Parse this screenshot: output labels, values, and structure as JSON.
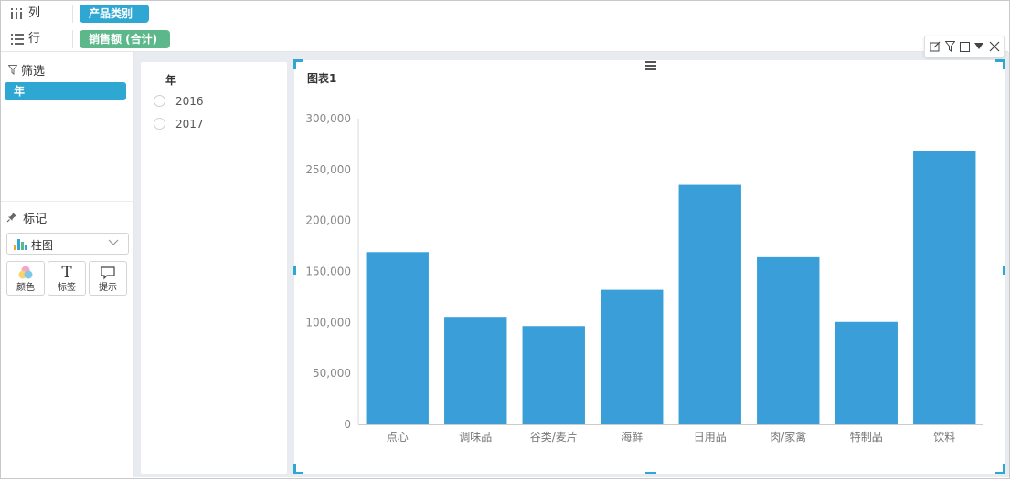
{
  "shelves": {
    "columns": {
      "label": "列",
      "icon": "columns-icon",
      "field": "产品类别"
    },
    "rows": {
      "label": "行",
      "icon": "rows-icon",
      "field": "销售额 (合计)"
    }
  },
  "left_panel": {
    "filter": {
      "title": "筛选",
      "icon": "filter-icon",
      "field": "年"
    },
    "marks": {
      "title": "标记",
      "icon": "pin-icon",
      "chart_type": "柱图",
      "buttons": [
        {
          "label": "颜色",
          "icon": "color-icon"
        },
        {
          "label": "标签",
          "icon": "text-icon"
        },
        {
          "label": "提示",
          "icon": "tooltip-icon"
        }
      ]
    }
  },
  "filter_widget": {
    "title": "年",
    "options": [
      "2016",
      "2017"
    ]
  },
  "chart_widget": {
    "title": "图表1",
    "toolbar": [
      "edit-icon",
      "filter-icon",
      "maximize-icon",
      "dropdown-icon",
      "close-icon"
    ]
  },
  "colors": {
    "accent": "#2ea8d3",
    "bar": "#3a9fd8",
    "measure_pill": "#5cb88a"
  },
  "chart_data": {
    "type": "bar",
    "categories": [
      "点心",
      "调味品",
      "谷类/麦片",
      "海鲜",
      "日用品",
      "肉/家禽",
      "特制品",
      "饮料"
    ],
    "values": [
      169000,
      105500,
      96500,
      132000,
      235000,
      164000,
      100500,
      268500
    ],
    "ylim": [
      0,
      300000
    ],
    "yticks": [
      "0",
      "50,000",
      "100,000",
      "150,000",
      "200,000",
      "250,000",
      "300,000"
    ],
    "ytick_values": [
      0,
      50000,
      100000,
      150000,
      200000,
      250000,
      300000
    ],
    "grid": false,
    "legend": "none"
  }
}
